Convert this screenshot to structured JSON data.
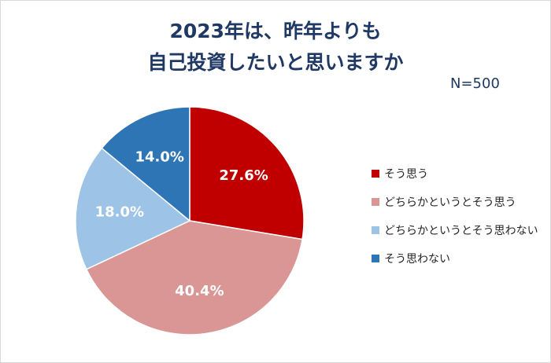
{
  "title_line1": "2023年は、昨年よりも",
  "title_line2": "自己投資したいと思いますか",
  "sample_size": "N=500",
  "chart_data": {
    "type": "pie",
    "title": "2023年は、昨年よりも自己投資したいと思いますか",
    "categories": [
      "そう思う",
      "どちらかというとそう思う",
      "どちらかというとそう思わない",
      "そう思わない"
    ],
    "values": [
      27.6,
      40.4,
      18.0,
      14.0
    ],
    "labels": [
      "27.6%",
      "40.4%",
      "18.0%",
      "14.0%"
    ],
    "colors": [
      "#c00000",
      "#d99694",
      "#9dc3e6",
      "#2e75b6"
    ],
    "legend_position": "right",
    "start": "12 o'clock, clockwise"
  }
}
